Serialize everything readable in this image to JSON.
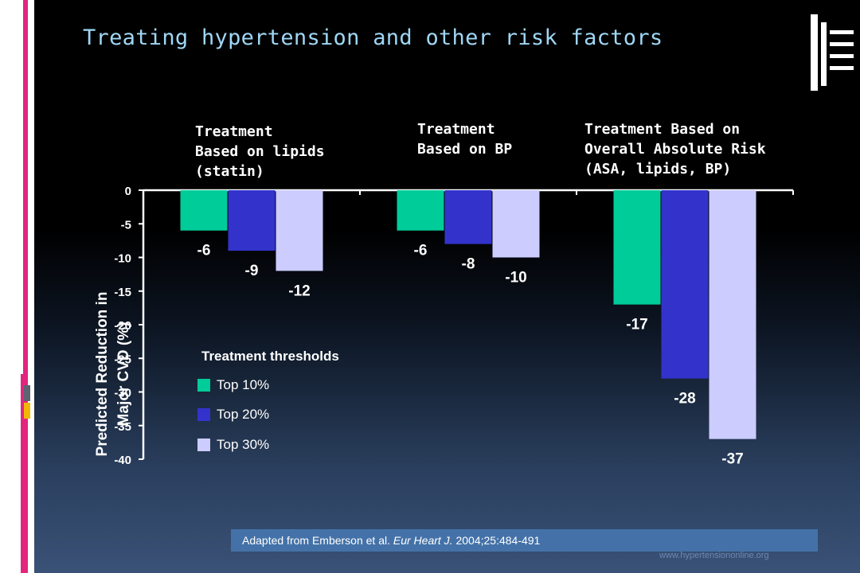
{
  "slide": {
    "title": "Treating hypertension and other risk factors",
    "footer": {
      "prefix": "Adapted from Emberson et al. ",
      "journal": "Eur Heart J.",
      "suffix": " 2004;25:484-491"
    },
    "watermark": "www.hypertensiononline.org"
  },
  "colors": {
    "top10": "#00cc99",
    "top20": "#3333cc",
    "top30": "#ccccff",
    "title": "#9fd7f5",
    "footer_bg": "#4472a8"
  },
  "legend": {
    "title": "Treatment thresholds",
    "items": [
      "Top 10%",
      "Top 20%",
      "Top 30%"
    ]
  },
  "chart_data": {
    "type": "bar",
    "categories": [
      "Treatment Based on lipids (statin)",
      "Treatment Based on BP",
      "Treatment Based on Overall Absolute Risk (ASA, lipids, BP)"
    ],
    "category_labels_display": [
      "Treatment\nBased on lipids\n(statin)",
      "Treatment\nBased on BP",
      "Treatment Based on\nOverall Absolute Risk\n(ASA, lipids, BP)"
    ],
    "series": [
      {
        "name": "Top 10%",
        "values": [
          -6,
          -6,
          -17
        ]
      },
      {
        "name": "Top 20%",
        "values": [
          -9,
          -8,
          -28
        ]
      },
      {
        "name": "Top 30%",
        "values": [
          -12,
          -10,
          -37
        ]
      }
    ],
    "ylabel": "Predicted Reduction in Major CVD (%)",
    "ylim": [
      -40,
      0
    ],
    "yticks": [
      0,
      -5,
      -10,
      -15,
      -20,
      -25,
      -30,
      -35,
      -40
    ],
    "legend_position": "bottom-left inside plot",
    "grid": false
  }
}
